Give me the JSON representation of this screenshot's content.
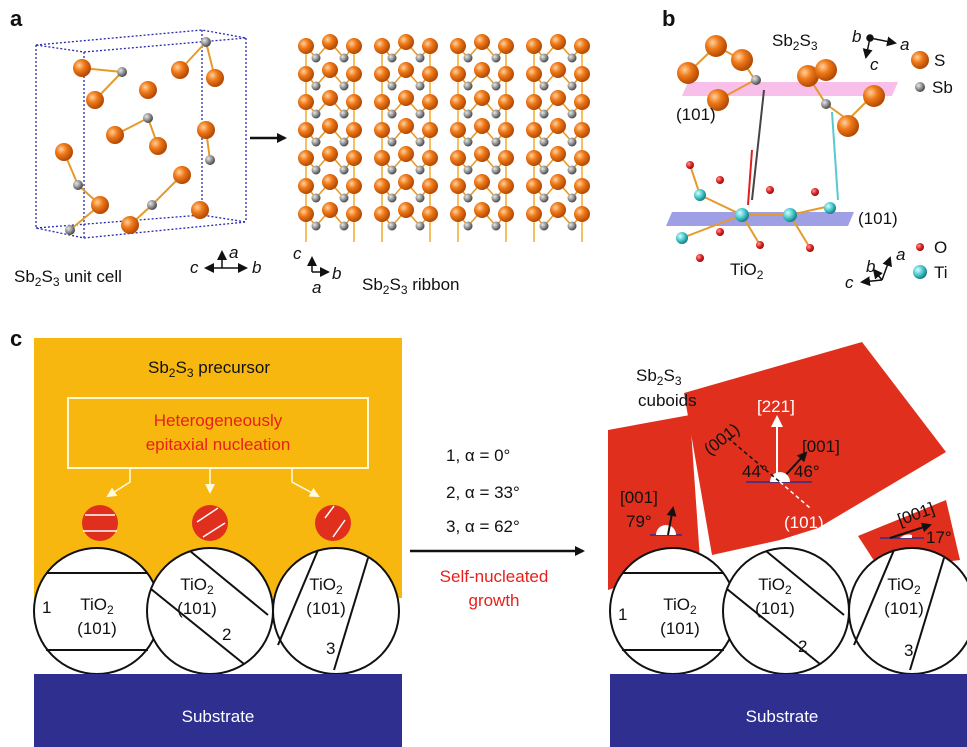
{
  "panels": {
    "a": "a",
    "b": "b",
    "c": "c"
  },
  "panel_a": {
    "unit_cell_formula": "Sb",
    "unit_cell_sub1": "2",
    "unit_cell_mid": "S",
    "unit_cell_sub2": "3",
    "unit_cell_suffix": " unit cell",
    "ribbon_formula": "Sb",
    "ribbon_sub1": "2",
    "ribbon_mid": "S",
    "ribbon_sub2": "3",
    "ribbon_suffix": " ribbon",
    "axes1": {
      "up": "a",
      "left": "c",
      "right": "b"
    },
    "axes2": {
      "up": "c",
      "down": "a",
      "right": "b"
    }
  },
  "panel_b": {
    "top_formula": "Sb",
    "top_sub1": "2",
    "top_mid": "S",
    "top_sub2": "3",
    "bottom_formula": "TiO",
    "bottom_sub": "2",
    "plane_top": "(101)",
    "plane_bottom": "(101)",
    "axes_top": {
      "b": "b",
      "a": "a",
      "c": "c"
    },
    "axes_bottom": {
      "c": "c",
      "b": "b",
      "a": "a"
    },
    "legend": [
      {
        "label": "S",
        "color": "#ef7a1a"
      },
      {
        "label": "Sb",
        "color": "#8c8c8c"
      },
      {
        "label": "O",
        "color": "#e02020"
      },
      {
        "label": "Ti",
        "color": "#40c4c8"
      }
    ]
  },
  "panel_c": {
    "precursor_formula": "Sb",
    "precursor_sub1": "2",
    "precursor_mid": "S",
    "precursor_sub2": "3",
    "precursor_suffix": " precursor",
    "nucleation_line1": "Heterogeneously",
    "nucleation_line2": "epitaxial nucleation",
    "angles": [
      "1, α = 0°",
      "2, α = 33°",
      "3, α = 62°"
    ],
    "growth_line1": "Self-nucleated",
    "growth_line2": "growth",
    "cuboids_formula": "Sb",
    "cuboids_sub1": "2",
    "cuboids_mid": "S",
    "cuboids_sub2": "3",
    "cuboids_label": "cuboids",
    "tio2": "TiO",
    "tio2_sub": "2",
    "plane": "(101)",
    "grain_numbers": [
      "1",
      "2",
      "3"
    ],
    "substrate": "Substrate",
    "dir_221": "[221]",
    "dir_001": "[001]",
    "plane_001": "(001)",
    "plane_101": "(101)",
    "angle_79": "79°",
    "angle_44": "44°",
    "angle_46": "46°",
    "angle_17": "17°",
    "colors": {
      "precursor": "#f7b70f",
      "cuboid": "#e02f1d",
      "substrate": "#2e2f8f",
      "highlight": "#e8201c"
    }
  }
}
